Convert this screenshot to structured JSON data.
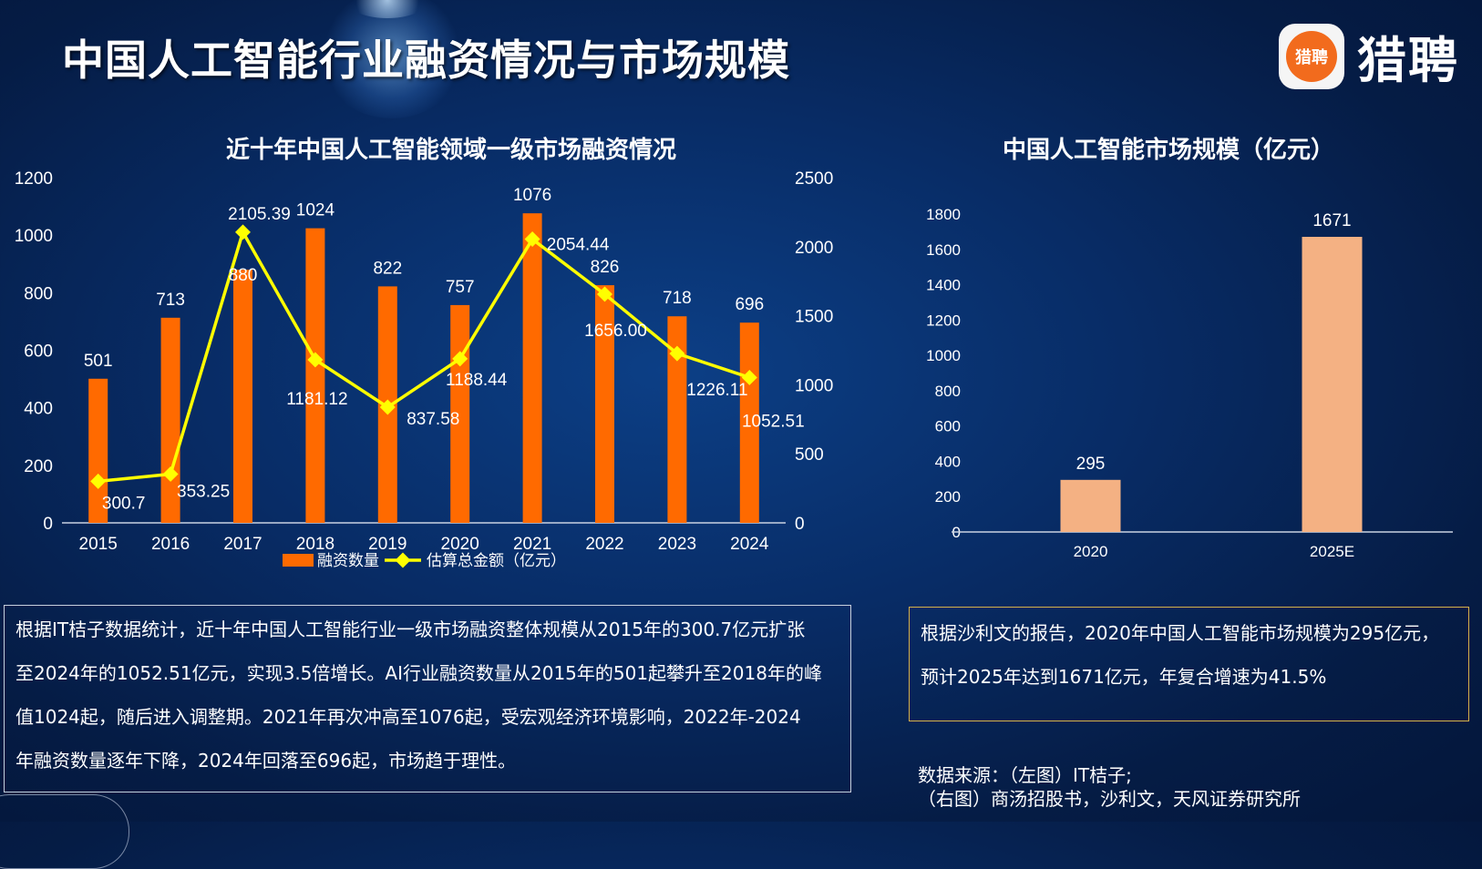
{
  "header": {
    "title": "中国人工智能行业融资情况与市场规模"
  },
  "logo": {
    "icon_text": "猎聘",
    "brand": "猎聘"
  },
  "colors": {
    "bar_left": "#ff6a00",
    "line": "#ffff00",
    "bar_right": "#f4b183"
  },
  "chart_data": [
    {
      "type": "bar",
      "title": "近十年中国人工智能领域一级市场融资情况",
      "categories": [
        "2015",
        "2016",
        "2017",
        "2018",
        "2019",
        "2020",
        "2021",
        "2022",
        "2023",
        "2024"
      ],
      "series": [
        {
          "name": "融资数量",
          "type": "bar",
          "axis": "left",
          "values": [
            501,
            713,
            880,
            1024,
            822,
            757,
            1076,
            826,
            718,
            696
          ],
          "labels": [
            "501",
            "713",
            "880",
            "1024",
            "822",
            "757",
            "1076",
            "826",
            "718",
            "696"
          ]
        },
        {
          "name": "估算总金额（亿元）",
          "type": "line",
          "axis": "right",
          "values": [
            300.7,
            353.25,
            2105.39,
            1181.12,
            837.58,
            1188.44,
            2054.44,
            1656.0,
            1226.11,
            1052.51
          ],
          "labels": [
            "300.7",
            "353.25",
            "2105.39",
            "1181.12",
            "837.58",
            "1188.44",
            "2054.44",
            "1656.00",
            "1226.11",
            "1052.51"
          ]
        }
      ],
      "y_left": {
        "range": [
          0,
          1200
        ],
        "ticks": [
          "0",
          "200",
          "400",
          "600",
          "800",
          "1000",
          "1200"
        ]
      },
      "y_right": {
        "range": [
          0,
          2500
        ],
        "ticks": [
          "0",
          "500",
          "1000",
          "1500",
          "2000",
          "2500"
        ]
      },
      "legend": [
        "融资数量",
        "估算总金额（亿元）"
      ],
      "legend_position": "bottom",
      "grid": false
    },
    {
      "type": "bar",
      "title": "中国人工智能市场规模（亿元）",
      "categories": [
        "2020",
        "2025E"
      ],
      "values": [
        295,
        1671
      ],
      "labels": [
        "295",
        "1671"
      ],
      "ylim": [
        0,
        1800
      ],
      "yticks": [
        "0",
        "200",
        "400",
        "600",
        "800",
        "1000",
        "1200",
        "1400",
        "1600",
        "1800"
      ],
      "grid": false
    }
  ],
  "text_left": [
    "根据IT桔子数据统计，近十年中国人工智能行业一级市场融资整体规模从2015年的300.7亿元扩张",
    "至2024年的1052.51亿元，实现3.5倍增长。AI行业融资数量从2015年的501起攀升至2018年的峰",
    "值1024起，随后进入调整期。2021年再次冲高至1076起，受宏观经济环境影响，2022年-2024",
    "年融资数量逐年下降，2024年回落至696起，市场趋于理性。"
  ],
  "text_right": [
    "根据沙利文的报告，2020年中国人工智能市场规模为295亿元，",
    "预计2025年达到1671亿元，年复合增速为41.5%"
  ],
  "source": [
    "数据来源：（左图）IT桔子;",
    "（右图）商汤招股书，沙利文，天风证券研究所"
  ]
}
